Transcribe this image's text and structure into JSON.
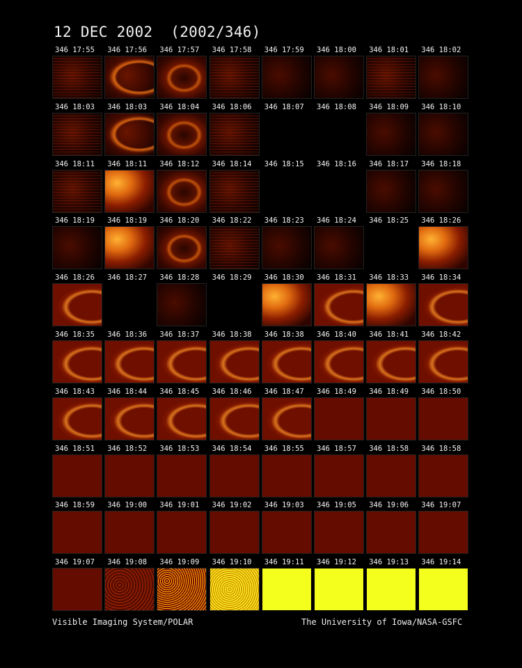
{
  "title": "12 DEC 2002  (2002/346)",
  "footer": {
    "left": "Visible Imaging System/POLAR",
    "right": "The University of Iowa/NASA-GSFC"
  },
  "frames": [
    [
      "346 17:55",
      "346 17:56",
      "346 17:57",
      "346 17:58",
      "346 17:59",
      "346 18:00",
      "346 18:01",
      "346 18:02"
    ],
    [
      "346 18:03",
      "346 18:03",
      "346 18:04",
      "346 18:06",
      "346 18:07",
      "346 18:08",
      "346 18:09",
      "346 18:10"
    ],
    [
      "346 18:11",
      "346 18:11",
      "346 18:12",
      "346 18:14",
      "346 18:15",
      "346 18:16",
      "346 18:17",
      "346 18:18"
    ],
    [
      "346 18:19",
      "346 18:19",
      "346 18:20",
      "346 18:22",
      "346 18:23",
      "346 18:24",
      "346 18:25",
      "346 18:26"
    ],
    [
      "346 18:26",
      "346 18:27",
      "346 18:28",
      "346 18:29",
      "346 18:30",
      "346 18:31",
      "346 18:33",
      "346 18:34"
    ],
    [
      "346 18:35",
      "346 18:36",
      "346 18:37",
      "346 18:38",
      "346 18:38",
      "346 18:40",
      "346 18:41",
      "346 18:42"
    ],
    [
      "346 18:43",
      "346 18:44",
      "346 18:45",
      "346 18:46",
      "346 18:47",
      "346 18:49",
      "346 18:49",
      "346 18:50"
    ],
    [
      "346 18:51",
      "346 18:52",
      "346 18:53",
      "346 18:54",
      "346 18:55",
      "346 18:57",
      "346 18:58",
      "346 18:58"
    ],
    [
      "346 18:59",
      "346 19:00",
      "346 19:01",
      "346 19:02",
      "346 19:03",
      "346 19:05",
      "346 19:06",
      "346 19:07"
    ],
    [
      "346 19:07",
      "346 19:08",
      "346 19:09",
      "346 19:10",
      "346 19:11",
      "346 19:12",
      "346 19:13",
      "346 19:14"
    ]
  ],
  "tile_styles": [
    [
      "streak",
      "arc",
      "disk",
      "streak",
      "faint",
      "faint",
      "streak",
      "faint"
    ],
    [
      "streak",
      "arc",
      "disk",
      "streak",
      "dark",
      "dark",
      "faint",
      "faint"
    ],
    [
      "streak",
      "bright",
      "disk",
      "streak",
      "dark",
      "dark",
      "faint",
      "faint"
    ],
    [
      "faint",
      "bright",
      "disk",
      "streak",
      "faint",
      "faint",
      "dark",
      "bright"
    ],
    [
      "red",
      "dark",
      "faint",
      "dark",
      "bright",
      "red",
      "bright",
      "red"
    ],
    [
      "red",
      "red",
      "red",
      "red",
      "red",
      "red",
      "red",
      "red"
    ],
    [
      "red",
      "red",
      "red",
      "red",
      "red",
      "plain",
      "plain",
      "plain"
    ],
    [
      "plain",
      "plain",
      "plain",
      "plain",
      "plain",
      "plain",
      "plain",
      "plain"
    ],
    [
      "plain",
      "plain",
      "plain",
      "plain",
      "plain",
      "plain",
      "plain",
      "plain"
    ],
    [
      "plain",
      "noise",
      "speckle",
      "yspeckle",
      "yellow",
      "yellow",
      "yellow",
      "yellow"
    ]
  ]
}
